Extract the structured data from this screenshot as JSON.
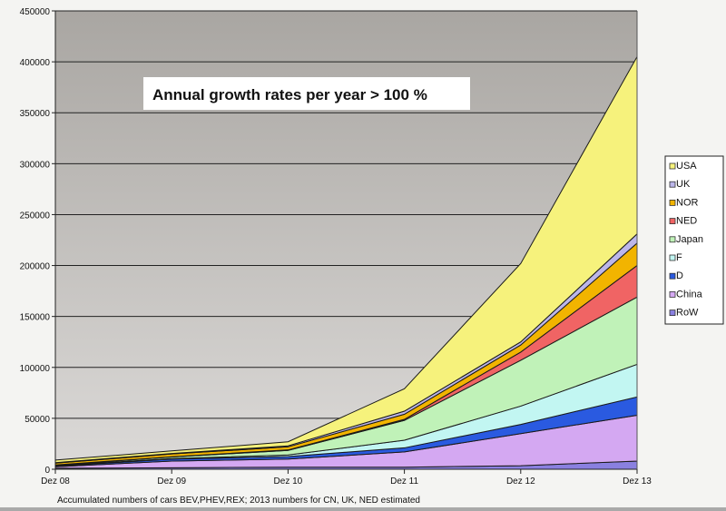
{
  "chart_data": {
    "type": "area",
    "stacked": true,
    "title": "",
    "annotation": "Annual growth rates per year > 100 %",
    "footnote": "Accumulated numbers of cars  BEV,PHEV,REX; 2013 numbers for CN,  UK,  NED estimated",
    "xlabel": "",
    "ylabel": "",
    "categories": [
      "Dez 08",
      "Dez 09",
      "Dez 10",
      "Dez 11",
      "Dez 12",
      "Dez 13"
    ],
    "ylim": [
      0,
      450000
    ],
    "yticks": [
      "0",
      "50000",
      "100000",
      "150000",
      "200000",
      "250000",
      "300000",
      "350000",
      "400000",
      "450000"
    ],
    "grid": true,
    "legend_position": "right",
    "series": [
      {
        "name": "RoW",
        "color": "#8a80e0",
        "values": [
          1000,
          1500,
          2000,
          2000,
          3500,
          8000
        ]
      },
      {
        "name": "China",
        "color": "#d4a8f2",
        "values": [
          1500,
          6500,
          8000,
          15000,
          31500,
          45000
        ]
      },
      {
        "name": "D",
        "color": "#2a5ae0",
        "values": [
          500,
          2000,
          2500,
          4000,
          9000,
          18000
        ]
      },
      {
        "name": "F",
        "color": "#c2f6f2",
        "values": [
          500,
          500,
          1500,
          7500,
          18000,
          32000
        ]
      },
      {
        "name": "Japan",
        "color": "#c0f2b8",
        "values": [
          500,
          1500,
          4500,
          19500,
          45000,
          66000
        ]
      },
      {
        "name": "NED",
        "color": "#f06464",
        "values": [
          200,
          300,
          500,
          1000,
          8000,
          31000
        ]
      },
      {
        "name": "NOR",
        "color": "#f2b400",
        "values": [
          1800,
          2700,
          3000,
          5000,
          7000,
          22000
        ]
      },
      {
        "name": "UK",
        "color": "#bcb6ea",
        "values": [
          500,
          500,
          1000,
          3000,
          3000,
          9000
        ]
      },
      {
        "name": "USA",
        "color": "#f6f27c",
        "values": [
          2500,
          2500,
          4000,
          22000,
          77000,
          174000
        ]
      }
    ]
  }
}
